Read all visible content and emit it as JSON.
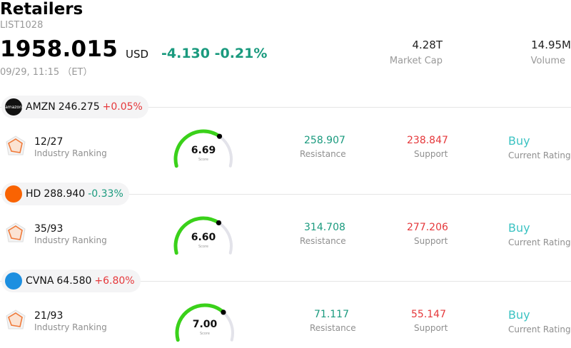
{
  "header": {
    "title": "Retailers",
    "code": "LIST1028",
    "price": "1958.015",
    "currency": "USD",
    "change": "-4.130",
    "change_pct": "-0.21%",
    "timestamp": "09/29, 11:15 （ET）",
    "market_cap_value": "4.28T",
    "market_cap_label": "Market Cap",
    "volume_value": "14.95M",
    "volume_label": "Volume"
  },
  "labels": {
    "industry_ranking": "Industry Ranking",
    "resistance": "Resistance",
    "support": "Support",
    "current_rating": "Current Rating",
    "score": "Score"
  },
  "stocks": [
    {
      "ticker": "AMZN",
      "price": "246.275",
      "change": "+0.05%",
      "logo_text": "amazon",
      "logo_color": "#111111",
      "rank": "12/27",
      "score": "6.69",
      "score_value": 6.69,
      "resistance": "258.907",
      "support": "238.847",
      "rating": "Buy"
    },
    {
      "ticker": "HD",
      "price": "288.940",
      "change": "-0.33%",
      "logo_text": "",
      "logo_color": "#f96302",
      "rank": "35/93",
      "score": "6.60",
      "score_value": 6.6,
      "resistance": "314.708",
      "support": "277.206",
      "rating": "Buy"
    },
    {
      "ticker": "CVNA",
      "price": "64.580",
      "change": "+6.80%",
      "logo_text": "",
      "logo_color": "#1d8fe0",
      "rank": "21/93",
      "score": "7.00",
      "score_value": 7.0,
      "resistance": "71.117",
      "support": "55.147",
      "rating": "Buy"
    }
  ],
  "colors": {
    "up": "#e5383b",
    "down": "#1a9a7e",
    "gauge": "#3ad11a",
    "rating": "#3cc3c3"
  }
}
